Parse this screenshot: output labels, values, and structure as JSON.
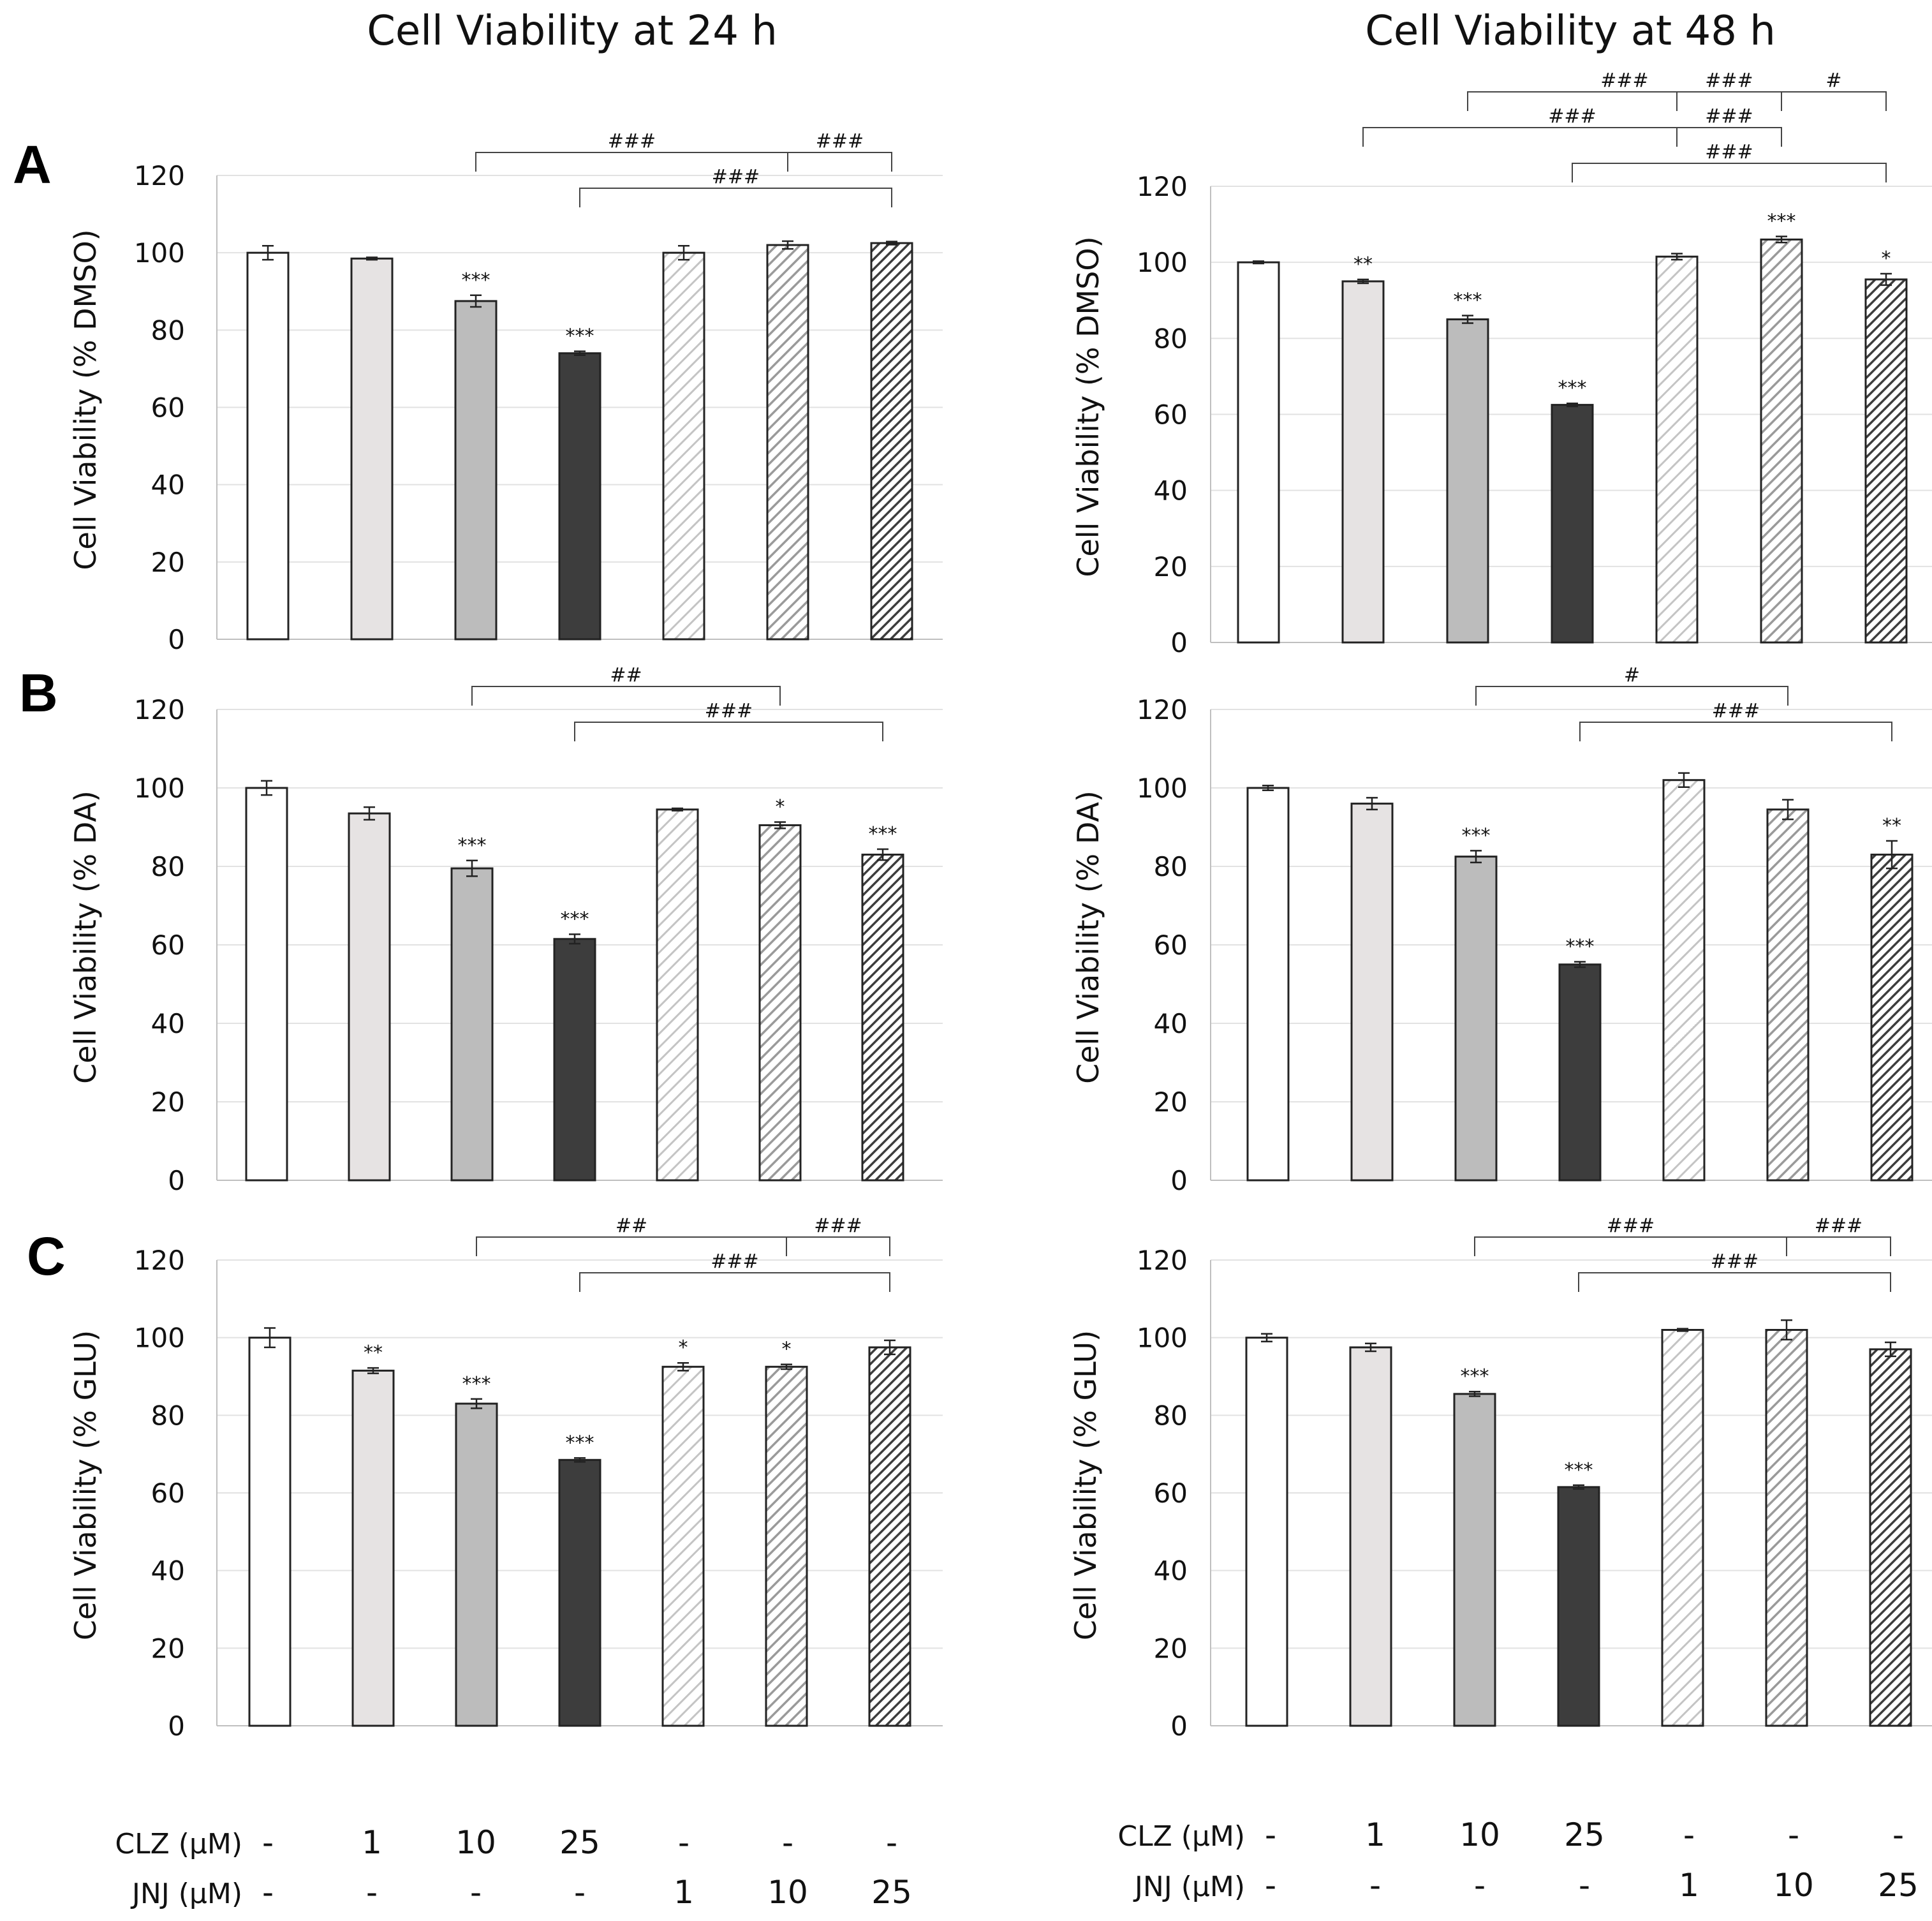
{
  "figure": {
    "column_titles": [
      "Cell Viability at 24 h",
      "Cell Viability at 48 h"
    ],
    "row_letters": [
      "A",
      "B",
      "C"
    ],
    "condition_table": {
      "rows": [
        {
          "label": "CLZ (µM)",
          "values": [
            "-",
            "1",
            "10",
            "25",
            "-",
            "-",
            "-"
          ]
        },
        {
          "label": "JNJ (µM)",
          "values": [
            "-",
            "-",
            "-",
            "-",
            "1",
            "10",
            "25"
          ]
        }
      ]
    }
  },
  "colors": {
    "bar_fills": [
      "#ffffff",
      "#e6e3e3",
      "#bcbcbc",
      "#3d3d3d",
      "#ffffff",
      "#ffffff",
      "#ffffff"
    ],
    "hatch_colors": [
      null,
      null,
      null,
      null,
      "#c4c4c4",
      "#9a9a9a",
      "#3d3d3d"
    ],
    "grid": "#e2e2e2",
    "axis": "#bfbfbf",
    "outline": "#222222"
  },
  "chart_data": [
    {
      "id": "A-24h",
      "type": "bar",
      "time": "24 h",
      "row": "A",
      "ylabel": "Cell Viability (% DMSO)",
      "ylim": [
        0,
        120
      ],
      "yticks": [
        0,
        20,
        40,
        60,
        80,
        100,
        120
      ],
      "categories": [
        "DMSO",
        "CLZ 1",
        "CLZ 10",
        "CLZ 25",
        "JNJ 1",
        "JNJ 10",
        "JNJ 25"
      ],
      "values": [
        100,
        98.5,
        87.5,
        74,
        100,
        102,
        102.5
      ],
      "errors": [
        1.8,
        0.3,
        1.5,
        0.5,
        1.8,
        1.0,
        0.4
      ],
      "stars": [
        "",
        "",
        "***",
        "***",
        "",
        "",
        ""
      ],
      "brackets": [
        {
          "from": 2,
          "to": 5,
          "level": 1,
          "label": "###"
        },
        {
          "from": 5,
          "to": 6,
          "level": 1,
          "label": "###"
        },
        {
          "from": 3,
          "to": 6,
          "level": 0,
          "label": "###"
        }
      ]
    },
    {
      "id": "A-48h",
      "type": "bar",
      "time": "48 h",
      "row": "A",
      "ylabel": "Cell Viability (% DMSO)",
      "ylim": [
        0,
        120
      ],
      "yticks": [
        0,
        20,
        40,
        60,
        80,
        100,
        120
      ],
      "categories": [
        "DMSO",
        "CLZ 1",
        "CLZ 10",
        "CLZ 25",
        "JNJ 1",
        "JNJ 10",
        "JNJ 25"
      ],
      "values": [
        100,
        95,
        85,
        62.5,
        101.5,
        106,
        95.5
      ],
      "errors": [
        0.3,
        0.5,
        1.0,
        0.4,
        0.8,
        0.8,
        1.5
      ],
      "stars": [
        "",
        "**",
        "***",
        "***",
        "",
        "***",
        "*"
      ],
      "brackets": [
        {
          "from": 2,
          "to": 5,
          "level": 3,
          "label": "###"
        },
        {
          "from": 5,
          "to": 6,
          "level": 3,
          "label": "#"
        },
        {
          "from": 4,
          "to": 5,
          "level": 3,
          "label": "###"
        },
        {
          "from": 1,
          "to": 5,
          "level": 2,
          "label": "###"
        },
        {
          "from": 4,
          "to": 5,
          "level": 2,
          "label": "###"
        },
        {
          "from": 3,
          "to": 6,
          "level": 1,
          "label": "###"
        }
      ]
    },
    {
      "id": "B-24h",
      "type": "bar",
      "time": "24 h",
      "row": "B",
      "ylabel": "Cell Viability (% DA)",
      "ylim": [
        0,
        120
      ],
      "yticks": [
        0,
        20,
        40,
        60,
        80,
        100,
        120
      ],
      "categories": [
        "DMSO",
        "CLZ 1",
        "CLZ 10",
        "CLZ 25",
        "JNJ 1",
        "JNJ 10",
        "JNJ 25"
      ],
      "values": [
        100,
        93.5,
        79.5,
        61.5,
        94.5,
        90.5,
        83
      ],
      "errors": [
        1.8,
        1.6,
        2.0,
        1.2,
        0.3,
        0.8,
        1.4
      ],
      "stars": [
        "",
        "",
        "***",
        "***",
        "",
        "*",
        "***"
      ],
      "brackets": [
        {
          "from": 2,
          "to": 5,
          "level": 1,
          "label": "##"
        },
        {
          "from": 3,
          "to": 6,
          "level": 0,
          "label": "###"
        }
      ]
    },
    {
      "id": "B-48h",
      "type": "bar",
      "time": "48 h",
      "row": "B",
      "ylabel": "Cell Viability (% DA)",
      "ylim": [
        0,
        120
      ],
      "yticks": [
        0,
        20,
        40,
        60,
        80,
        100,
        120
      ],
      "categories": [
        "DMSO",
        "CLZ 1",
        "CLZ 10",
        "CLZ 25",
        "JNJ 1",
        "JNJ 10",
        "JNJ 25"
      ],
      "values": [
        100,
        96,
        82.5,
        55,
        102,
        94.5,
        83
      ],
      "errors": [
        0.6,
        1.5,
        1.5,
        0.7,
        1.8,
        2.5,
        3.5
      ],
      "stars": [
        "",
        "",
        "***",
        "***",
        "",
        "",
        "**"
      ],
      "brackets": [
        {
          "from": 2,
          "to": 5,
          "level": 1,
          "label": "#"
        },
        {
          "from": 3,
          "to": 6,
          "level": 0,
          "label": "###"
        }
      ]
    },
    {
      "id": "C-24h",
      "type": "bar",
      "time": "24 h",
      "row": "C",
      "ylabel": "Cell Viability (% GLU)",
      "ylim": [
        0,
        120
      ],
      "yticks": [
        0,
        20,
        40,
        60,
        80,
        100,
        120
      ],
      "categories": [
        "DMSO",
        "CLZ 1",
        "CLZ 10",
        "CLZ 25",
        "JNJ 1",
        "JNJ 10",
        "JNJ 25"
      ],
      "values": [
        100,
        91.5,
        83,
        68.5,
        92.5,
        92.5,
        97.5
      ],
      "errors": [
        2.5,
        0.7,
        1.2,
        0.5,
        1.0,
        0.6,
        1.8
      ],
      "stars": [
        "",
        "**",
        "***",
        "***",
        "*",
        "*",
        ""
      ],
      "brackets": [
        {
          "from": 2,
          "to": 5,
          "level": 1,
          "label": "##"
        },
        {
          "from": 5,
          "to": 6,
          "level": 1,
          "label": "###"
        },
        {
          "from": 3,
          "to": 6,
          "level": 0,
          "label": "###"
        }
      ]
    },
    {
      "id": "C-48h",
      "type": "bar",
      "time": "48 h",
      "row": "C",
      "ylabel": "Cell Viability (% GLU)",
      "ylim": [
        0,
        120
      ],
      "yticks": [
        0,
        20,
        40,
        60,
        80,
        100,
        120
      ],
      "categories": [
        "DMSO",
        "CLZ 1",
        "CLZ 10",
        "CLZ 25",
        "JNJ 1",
        "JNJ 10",
        "JNJ 25"
      ],
      "values": [
        100,
        97.5,
        85.5,
        61.5,
        102,
        102,
        97
      ],
      "errors": [
        1.0,
        1.0,
        0.6,
        0.5,
        0.3,
        2.5,
        1.8
      ],
      "stars": [
        "",
        "",
        "***",
        "***",
        "",
        "",
        ""
      ],
      "brackets": [
        {
          "from": 2,
          "to": 5,
          "level": 1,
          "label": "###"
        },
        {
          "from": 5,
          "to": 6,
          "level": 1,
          "label": "###"
        },
        {
          "from": 3,
          "to": 6,
          "level": 0,
          "label": "###"
        }
      ]
    }
  ]
}
